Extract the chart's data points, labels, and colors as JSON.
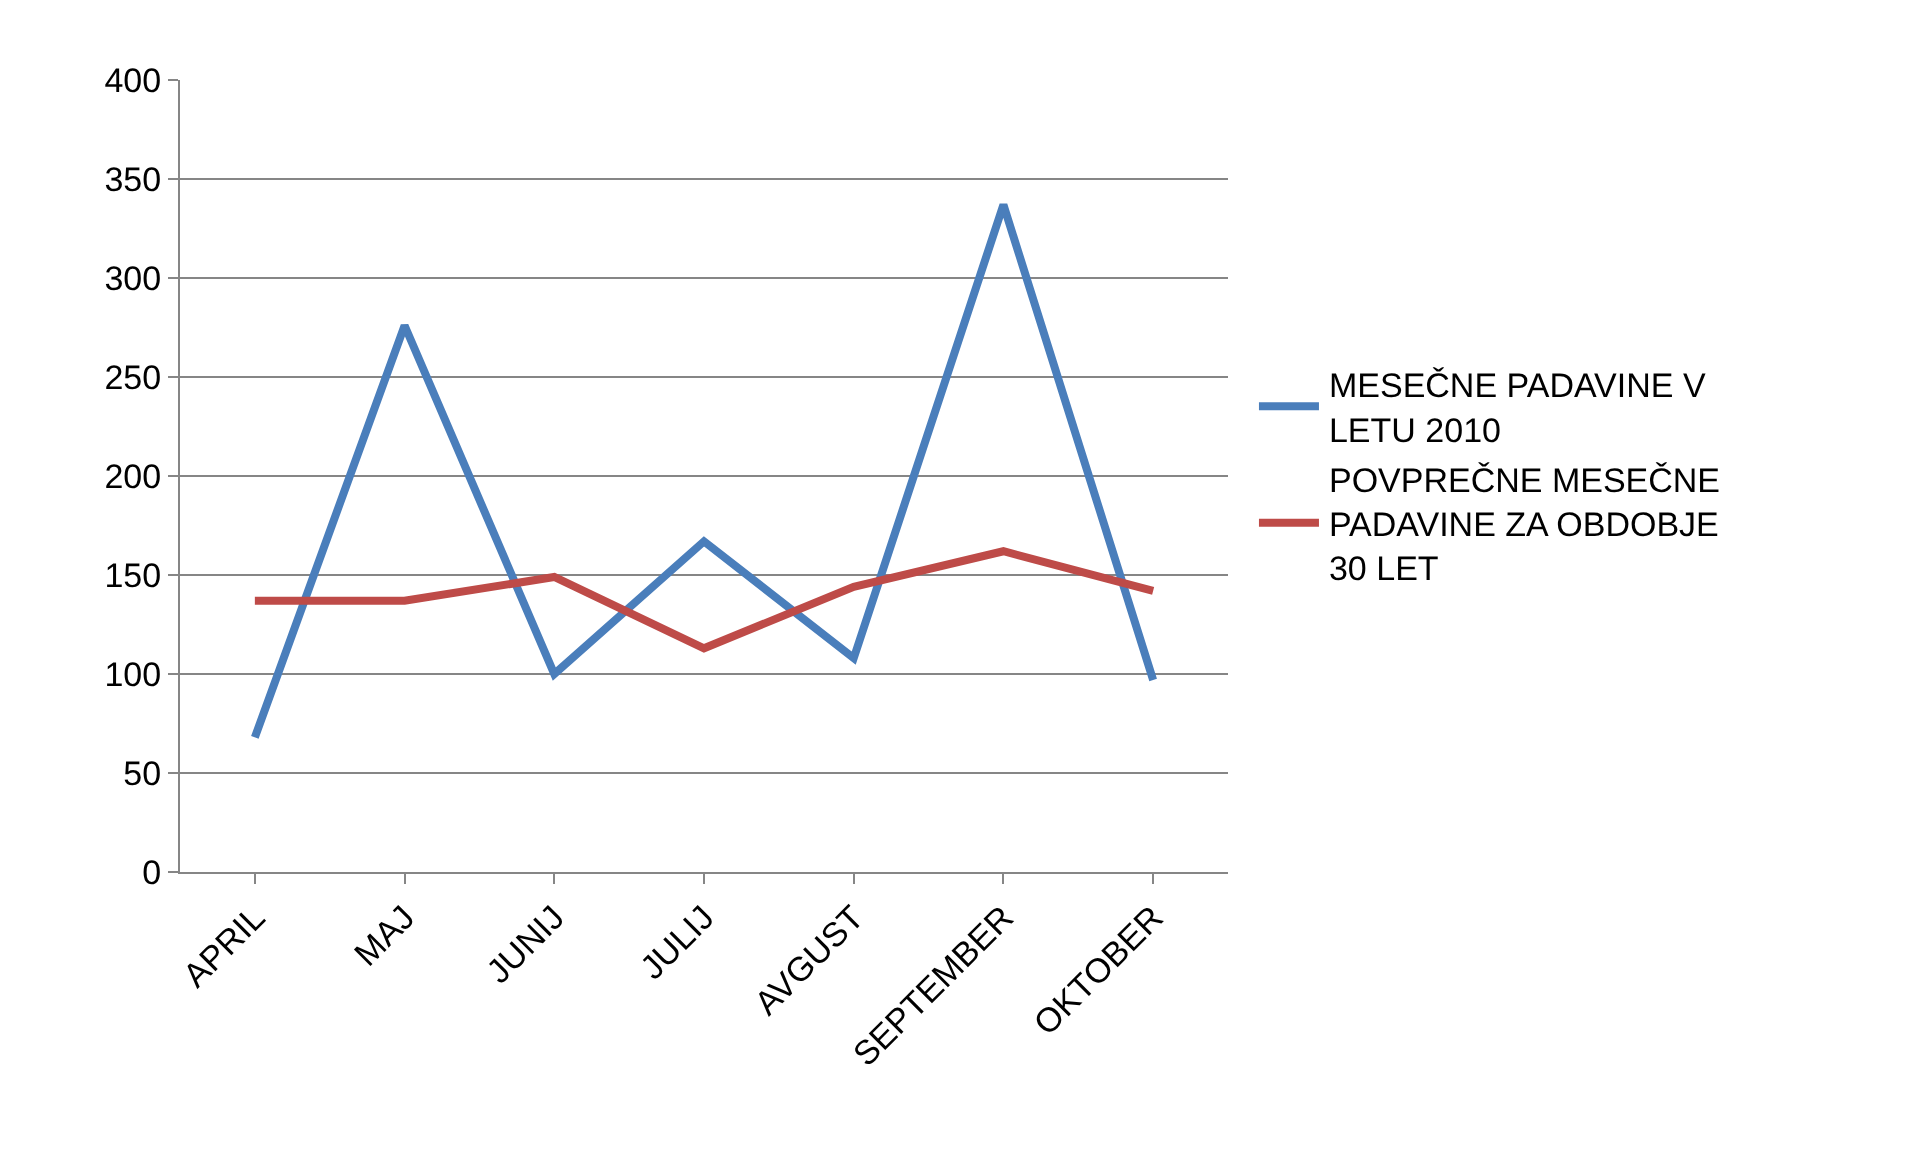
{
  "chart_data": {
    "type": "line",
    "categories": [
      "APRIL",
      "MAJ",
      "JUNIJ",
      "JULIJ",
      "AVGUST",
      "SEPTEMBER",
      "OKTOBER"
    ],
    "series": [
      {
        "name": "MESEČNE PADAVINE V LETU 2010",
        "color": "#4a7ebb",
        "values": [
          68,
          276,
          100,
          167,
          108,
          337,
          97
        ]
      },
      {
        "name": "POVPREČNE MESEČNE PADAVINE ZA OBDOBJE 30 LET",
        "color": "#be4b48",
        "values": [
          137,
          137,
          149,
          113,
          144,
          162,
          142
        ]
      }
    ],
    "ylim": [
      0,
      400
    ],
    "yticks": [
      0,
      50,
      100,
      150,
      200,
      250,
      300,
      350,
      400
    ],
    "grid": "y",
    "legend": "right",
    "marker": "none",
    "line_style": "solid"
  }
}
